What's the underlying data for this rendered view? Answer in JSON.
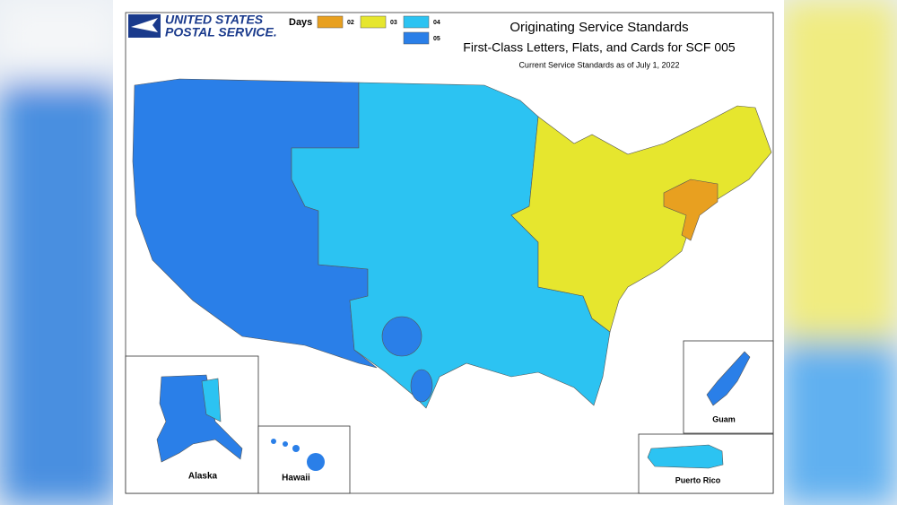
{
  "header": {
    "logo_line1": "UNITED STATES",
    "logo_line2": "POSTAL SERVICE."
  },
  "legend": {
    "title": "Days",
    "items": [
      {
        "label": "02",
        "color": "#e8a020"
      },
      {
        "label": "03",
        "color": "#e6e62e"
      },
      {
        "label": "04",
        "color": "#2cc3f2"
      },
      {
        "label": "05",
        "color": "#2a7fe8"
      }
    ]
  },
  "title": "Originating Service Standards",
  "subtitle": "First-Class Letters, Flats, and Cards for SCF 005",
  "note": "Current Service Standards as of July 1, 2022",
  "insets": {
    "alaska": "Alaska",
    "hawaii": "Hawaii",
    "guam": "Guam",
    "puerto_rico": "Puerto Rico"
  }
}
